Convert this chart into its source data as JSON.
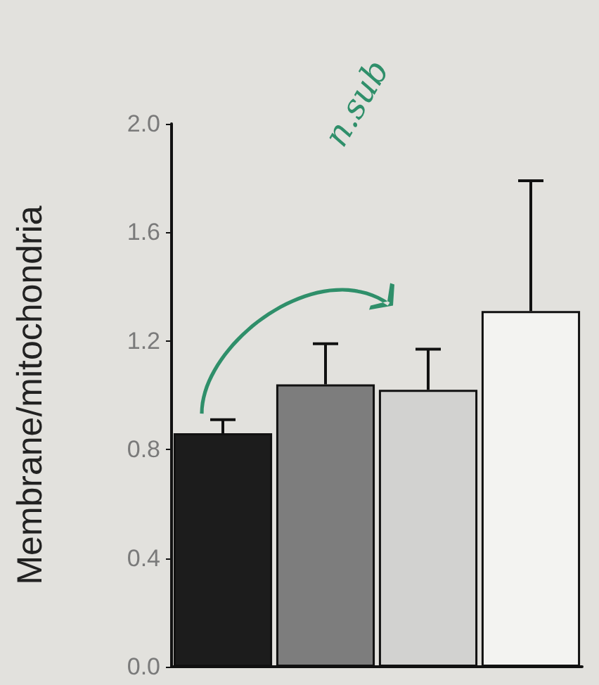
{
  "chart_data": {
    "type": "bar",
    "ylabel": "Membrane/mitochondria",
    "categories": [
      null,
      null,
      null,
      null
    ],
    "values": [
      0.86,
      1.04,
      1.02,
      1.31
    ],
    "colors": [
      "#1c1c1c",
      "#7d7d7d",
      "#d2d2d0",
      "#f3f3f1"
    ],
    "errors": [
      [
        0.86,
        0.91
      ],
      [
        1.04,
        1.19
      ],
      [
        1.02,
        1.17
      ],
      [
        1.31,
        1.79
      ]
    ],
    "ylim": [
      0,
      2.0
    ],
    "yticks": [
      {
        "value": 0,
        "label": "0.0"
      },
      {
        "value": 0.4,
        "label": "0.4"
      },
      {
        "value": 0.8,
        "label": "0.8"
      },
      {
        "value": 1.2,
        "label": "1.2"
      },
      {
        "value": 1.6,
        "label": "1.6"
      },
      {
        "value": 2.0,
        "label": "2.0"
      }
    ],
    "grid": false,
    "annotations": [
      "n.sub"
    ]
  }
}
